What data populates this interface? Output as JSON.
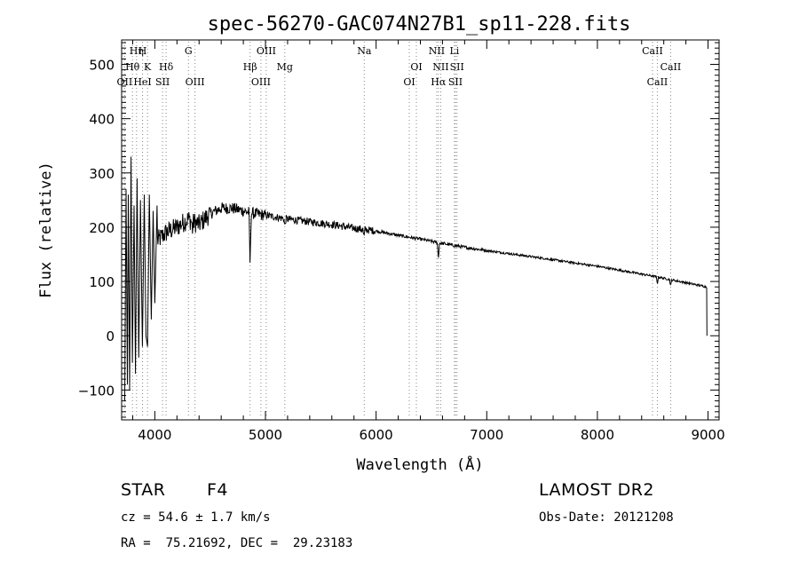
{
  "chart_data": {
    "type": "line",
    "title": "spec-56270-GAC074N27B1_sp11-228.fits",
    "xlabel": "Wavelength (Å)",
    "ylabel": "Flux (relative)",
    "xlim": [
      3700,
      9100
    ],
    "ylim": [
      -155,
      545
    ],
    "xticks": [
      4000,
      5000,
      6000,
      7000,
      8000,
      9000
    ],
    "yticks": [
      -100,
      0,
      100,
      200,
      300,
      400,
      500
    ],
    "xtick_labels": [
      "4000",
      "5000",
      "6000",
      "7000",
      "8000",
      "9000"
    ],
    "ytick_labels": [
      "−100",
      "0",
      "100",
      "200",
      "300",
      "400",
      "500"
    ],
    "grid": false,
    "line_color": "#000000",
    "marker_color": "#888888",
    "continuum": {
      "x": [
        3800,
        3900,
        4000,
        4100,
        4200,
        4300,
        4400,
        4500,
        4600,
        4700,
        4800,
        4900,
        5000,
        5200,
        5400,
        5600,
        5800,
        6000,
        6200,
        6400,
        6600,
        6800,
        7000,
        7500,
        8000,
        8500,
        8990
      ],
      "y": [
        110,
        150,
        170,
        190,
        200,
        215,
        205,
        225,
        235,
        235,
        230,
        225,
        222,
        215,
        210,
        205,
        198,
        193,
        185,
        178,
        170,
        163,
        157,
        143,
        128,
        110,
        90
      ]
    },
    "absorption_dips": [
      {
        "x": 4861,
        "depth": 100
      },
      {
        "x": 6563,
        "depth": 30
      },
      {
        "x": 5890,
        "depth": 15
      },
      {
        "x": 5175,
        "depth": 15
      },
      {
        "x": 8542,
        "depth": 12
      },
      {
        "x": 8662,
        "depth": 12
      },
      {
        "x": 4340,
        "depth": 15
      }
    ],
    "blue_end_spikes": [
      {
        "x": 3728,
        "y": -120
      },
      {
        "x": 3740,
        "y": 270
      },
      {
        "x": 3752,
        "y": -90
      },
      {
        "x": 3760,
        "y": 260
      },
      {
        "x": 3772,
        "y": -100
      },
      {
        "x": 3785,
        "y": 330
      },
      {
        "x": 3797,
        "y": -50
      },
      {
        "x": 3812,
        "y": 240
      },
      {
        "x": 3825,
        "y": -70
      },
      {
        "x": 3840,
        "y": 290
      },
      {
        "x": 3855,
        "y": -40
      },
      {
        "x": 3870,
        "y": 250
      },
      {
        "x": 3888,
        "y": -20
      },
      {
        "x": 3905,
        "y": 260
      },
      {
        "x": 3920,
        "y": 0
      },
      {
        "x": 3934,
        "y": -20
      },
      {
        "x": 3950,
        "y": 260
      },
      {
        "x": 3968,
        "y": 30
      },
      {
        "x": 3985,
        "y": 230
      },
      {
        "x": 4000,
        "y": 60
      },
      {
        "x": 4020,
        "y": 240
      }
    ],
    "red_end_drop": {
      "x": 8990,
      "y": 0
    },
    "lines": [
      {
        "label": "Hη",
        "x": 3835,
        "row": 0
      },
      {
        "label": "H",
        "x": 3889,
        "row": 0
      },
      {
        "label": "Hθ",
        "x": 3798,
        "row": 1
      },
      {
        "label": "K",
        "x": 3934,
        "row": 1
      },
      {
        "label": "Hδ",
        "x": 4102,
        "row": 1
      },
      {
        "label": "OII",
        "x": 3727,
        "row": 2
      },
      {
        "label": "HeI",
        "x": 3889,
        "row": 2
      },
      {
        "label": "SII",
        "x": 4070,
        "row": 2
      },
      {
        "label": "G",
        "x": 4304,
        "row": 0
      },
      {
        "label": "OIII",
        "x": 4363,
        "row": 2
      },
      {
        "label": "OIII",
        "x": 5007,
        "row": 0
      },
      {
        "label": "Hβ",
        "x": 4861,
        "row": 1
      },
      {
        "label": "OIII",
        "x": 4959,
        "row": 2
      },
      {
        "label": "Mg",
        "x": 5175,
        "row": 1
      },
      {
        "label": "Na",
        "x": 5893,
        "row": 0
      },
      {
        "label": "OI",
        "x": 6364,
        "row": 1
      },
      {
        "label": "OI",
        "x": 6300,
        "row": 2
      },
      {
        "label": "NII",
        "x": 6548,
        "row": 0
      },
      {
        "label": "Li",
        "x": 6708,
        "row": 0
      },
      {
        "label": "NII",
        "x": 6584,
        "row": 1
      },
      {
        "label": "SII",
        "x": 6731,
        "row": 1
      },
      {
        "label": "Hα",
        "x": 6563,
        "row": 2
      },
      {
        "label": "SII",
        "x": 6717,
        "row": 2
      },
      {
        "label": "CaII",
        "x": 8498,
        "row": 0
      },
      {
        "label": "CaII",
        "x": 8662,
        "row": 1
      },
      {
        "label": "CaII",
        "x": 8542,
        "row": 2
      }
    ]
  },
  "info": {
    "class_label": "STAR",
    "subclass": "F4",
    "velocity": "cz = 54.6 ± 1.7 km/s",
    "coords": "RA =  75.21692, DEC =  29.23183",
    "survey": "LAMOST DR2",
    "obs_date": "Obs-Date: 20121208"
  }
}
